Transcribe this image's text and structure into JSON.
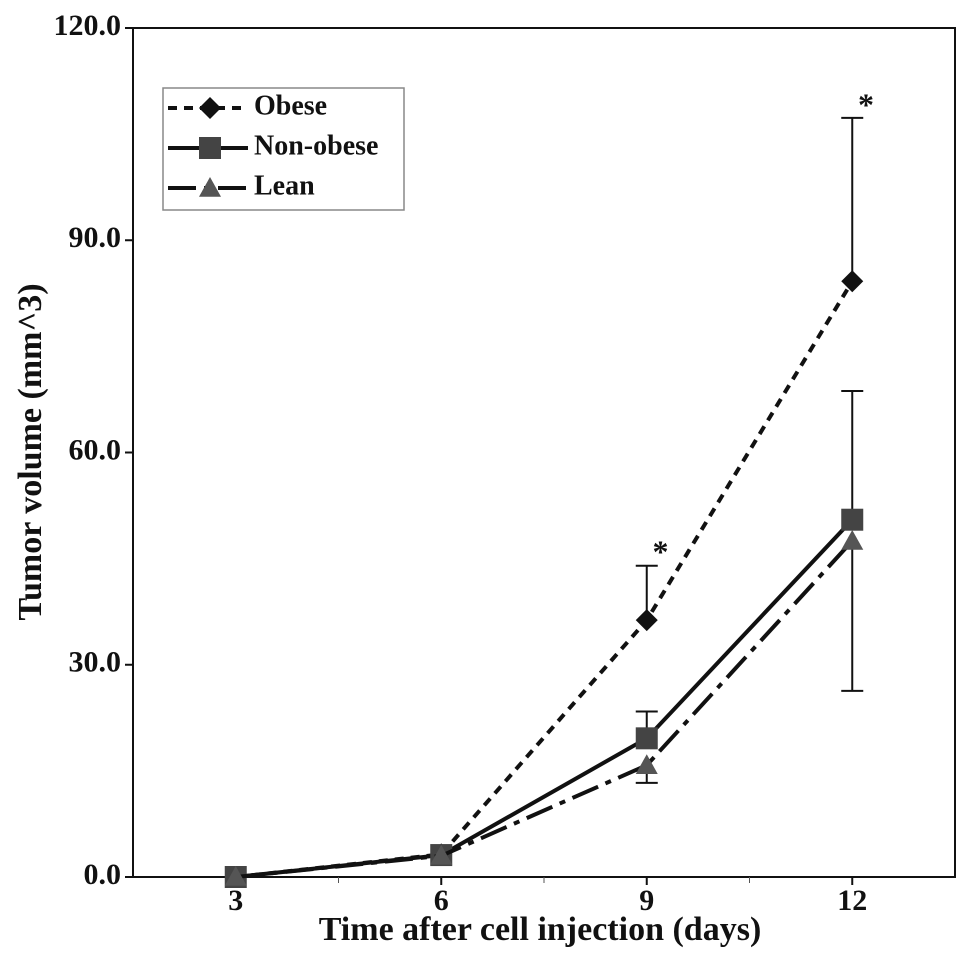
{
  "chart_data": {
    "type": "line",
    "xlabel": "Time after cell injection (days)",
    "ylabel": "Tumor volume (mm^3)",
    "x": [
      3,
      6,
      9,
      12
    ],
    "xlim": [
      1.5,
      13.5
    ],
    "xticks": [
      3,
      6,
      9,
      12
    ],
    "xminor_ticks": [
      4.5,
      7.5,
      10.5
    ],
    "ylim": [
      0,
      120
    ],
    "yticks": [
      {
        "value": 0,
        "label": "0.0"
      },
      {
        "value": 30,
        "label": "30.0"
      },
      {
        "value": 60,
        "label": "60.0"
      },
      {
        "value": 90,
        "label": "90.0"
      },
      {
        "value": 120,
        "label": "120.0"
      }
    ],
    "legend": "upper left",
    "series": [
      {
        "name": "Obese",
        "color": "#111111",
        "linestyle": "dotted",
        "marker": "diamond",
        "values": [
          0,
          3.2,
          36.3,
          84.2
        ],
        "errors": [
          null,
          null,
          7.7,
          23.1
        ],
        "error_direction": "up"
      },
      {
        "name": "Non-obese",
        "color": "#111111",
        "marker_color": "#444444",
        "linestyle": "solid",
        "marker": "square",
        "values": [
          0,
          3.1,
          19.6,
          50.5
        ],
        "errors": [
          null,
          null,
          3.8,
          18.2
        ],
        "error_direction": "up"
      },
      {
        "name": "Lean",
        "color": "#111111",
        "marker_color": "#555555",
        "linestyle": "dashdot",
        "marker": "triangle",
        "values": [
          0,
          3.0,
          15.8,
          47.5
        ],
        "errors": [
          null,
          null,
          2.5,
          21.2
        ],
        "error_direction": "down"
      }
    ],
    "annotations": [
      {
        "text": "*",
        "x": 9.2,
        "y": 45.5
      },
      {
        "text": "*",
        "x": 12.2,
        "y": 108.7
      }
    ]
  }
}
